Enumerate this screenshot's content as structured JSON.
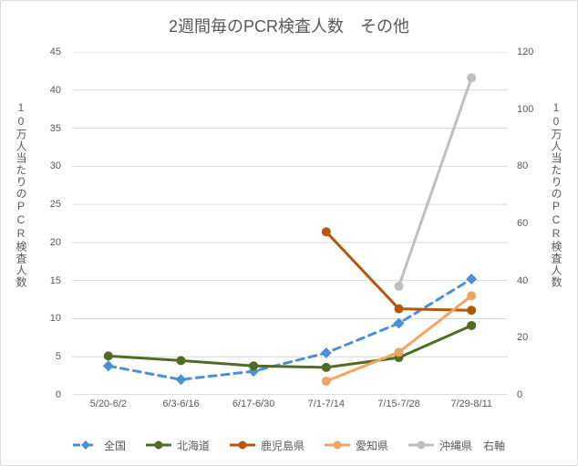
{
  "chart": {
    "type": "line",
    "title": "2週間毎のPCR検査人数　その他",
    "title_fontsize": 18,
    "label_fontsize": 12,
    "tick_fontsize": 11,
    "background_color": "#ffffff",
    "border_color": "#d9d9d9",
    "grid_color": "#d9d9d9",
    "axis_line_color": "#bfbfbf",
    "text_color": "#595959",
    "y_left": {
      "label": "10万人当たりのPCR検査人数",
      "min": 0,
      "max": 45,
      "step": 5
    },
    "y_right": {
      "label": "10万人当たりのPCR検査人数",
      "min": 0,
      "max": 120,
      "step": 20
    },
    "categories": [
      "5/20-6/2",
      "6/3-6/16",
      "6/17-6/30",
      "7/1-7/14",
      "7/15-7/28",
      "7/29-8/11"
    ],
    "series": [
      {
        "name": "全国",
        "axis": "left",
        "color": "#4a90d9",
        "dash": "8 6",
        "width": 3,
        "marker": "diamond",
        "marker_size": 6,
        "data": [
          3.8,
          2.0,
          3.1,
          5.5,
          9.4,
          15.2
        ]
      },
      {
        "name": "北海道",
        "axis": "left",
        "color": "#4f6b24",
        "dash": null,
        "width": 3,
        "marker": "circle",
        "marker_size": 5,
        "data": [
          5.1,
          4.5,
          3.8,
          3.6,
          4.9,
          9.1
        ]
      },
      {
        "name": "鹿児島県",
        "axis": "left",
        "color": "#b65708",
        "dash": null,
        "width": 3,
        "marker": "circle",
        "marker_size": 5,
        "data": [
          null,
          null,
          null,
          21.4,
          11.3,
          11.1
        ]
      },
      {
        "name": "愛知県",
        "axis": "left",
        "color": "#f4a460",
        "dash": null,
        "width": 3,
        "marker": "circle",
        "marker_size": 5,
        "data": [
          null,
          null,
          null,
          1.8,
          5.6,
          13.0
        ]
      },
      {
        "name": "沖縄県　右軸",
        "axis": "right",
        "color": "#bfbfbf",
        "dash": null,
        "width": 3,
        "marker": "circle",
        "marker_size": 5,
        "data": [
          null,
          null,
          null,
          null,
          38,
          111
        ]
      }
    ]
  }
}
